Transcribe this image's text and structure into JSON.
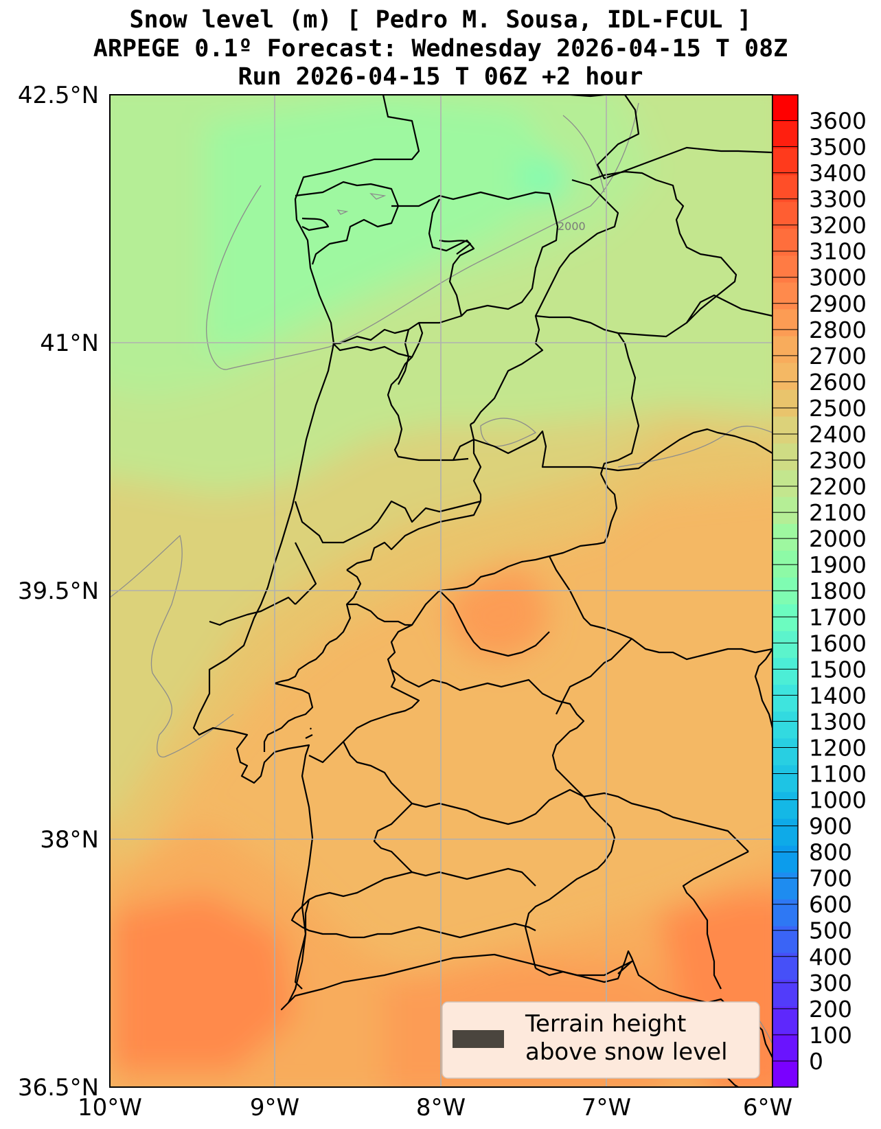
{
  "title": {
    "line1": "Snow level (m) [ Pedro M. Sousa, IDL-FCUL ]",
    "line2": "ARPEGE 0.1º Forecast: Wednesday 2026-04-15 T 08Z",
    "line3": "Run 2026-04-15 T 06Z +2 hour"
  },
  "axes": {
    "lat_ticks": [
      "42.5°N",
      "41°N",
      "39.5°N",
      "38°N",
      "36.5°N"
    ],
    "lon_ticks": [
      "10°W",
      "9°W",
      "8°W",
      "7°W",
      "6°W"
    ]
  },
  "contour_label": "2000",
  "colorbar": {
    "labels": [
      "3600",
      "3500",
      "3400",
      "3300",
      "3200",
      "3100",
      "3000",
      "2900",
      "2800",
      "2700",
      "2600",
      "2500",
      "2400",
      "2300",
      "2200",
      "2100",
      "2000",
      "1900",
      "1800",
      "1700",
      "1600",
      "1500",
      "1400",
      "1300",
      "1200",
      "1100",
      "1000",
      "900",
      "800",
      "700",
      "600",
      "500",
      "400",
      "300",
      "200",
      "100",
      "0"
    ],
    "colors": [
      "#ff0000",
      "#ff1f0f",
      "#ff3a1c",
      "#ff4e28",
      "#ff5e32",
      "#ff6e3c",
      "#ff7b44",
      "#ff8a4c",
      "#fc9c54",
      "#f8ac5c",
      "#f4b864",
      "#e9c46c",
      "#dcd27a",
      "#cfdc84",
      "#c3e68e",
      "#b5ee96",
      "#9ef8a0",
      "#8dfaa6",
      "#7ffcb2",
      "#6cfcc0",
      "#5cf4cc",
      "#4ceed6",
      "#3ee4de",
      "#32dae0",
      "#28cfe2",
      "#1ec4e4",
      "#14b8e6",
      "#0eaae8",
      "#0c9cec",
      "#1e8cf0",
      "#2e78f4",
      "#3a64f6",
      "#4650f8",
      "#523cfa",
      "#5e28fc",
      "#6a14fe",
      "#7a00ff"
    ]
  },
  "legend": {
    "line1": "Terrain height",
    "line2": "above snow level",
    "swatch_color": "#4a453e"
  }
}
